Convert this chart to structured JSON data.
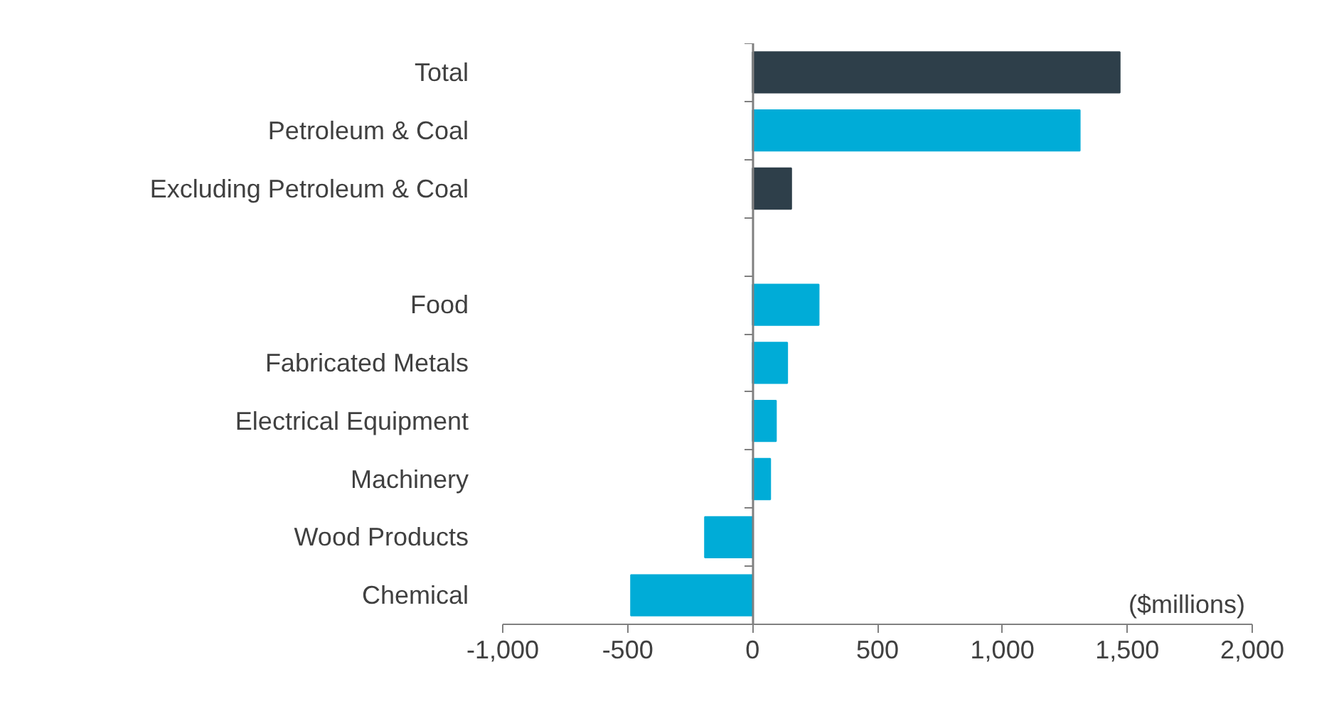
{
  "chart_data": {
    "type": "bar",
    "orientation": "horizontal",
    "categories": [
      "Total",
      "Petroleum & Coal",
      "Excluding Petroleum & Coal",
      null,
      "Food",
      "Fabricated Metals",
      "Electrical Equipment",
      "Machinery",
      "Wood Products",
      "Chemical"
    ],
    "values": [
      1470,
      1310,
      155,
      null,
      265,
      139,
      94,
      71,
      -191,
      -487
    ],
    "colors": [
      "#2e3f4a",
      "#00acd7",
      "#2e3f4a",
      null,
      "#00acd7",
      "#00acd7",
      "#00acd7",
      "#00acd7",
      "#00acd7",
      "#00acd7"
    ],
    "xlim": [
      -1000,
      2000
    ],
    "xticks": [
      {
        "value": -1000,
        "label": "-1,000"
      },
      -500,
      0,
      500,
      {
        "value": 1000,
        "label": "1,000"
      },
      {
        "value": 1500,
        "label": "1,500"
      },
      {
        "value": 2000,
        "label": "2,000"
      }
    ],
    "annotations": [
      "($millions)"
    ]
  }
}
